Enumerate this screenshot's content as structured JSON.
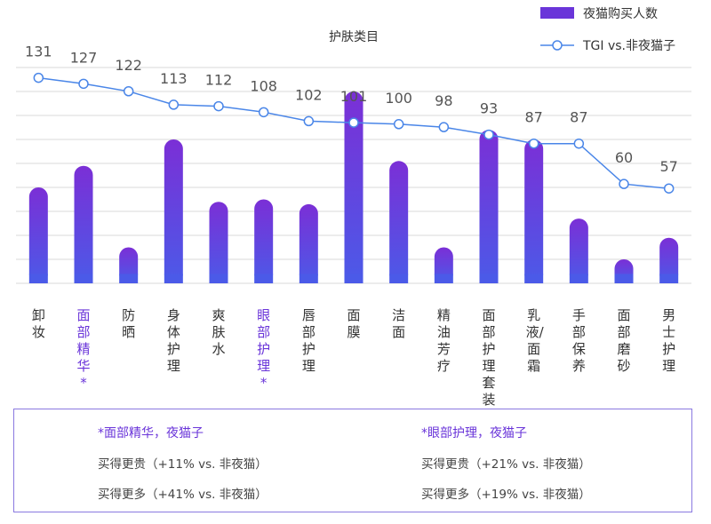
{
  "chart_data": {
    "type": "bar+line",
    "title": "护肤类目",
    "categories": [
      "卸妆",
      "面部精华*",
      "防晒",
      "身体护理",
      "爽肤水",
      "眼部护理*",
      "唇部护理",
      "面膜",
      "洁面",
      "精油芳疗",
      "面部护理套装",
      "乳液/面霜",
      "手部保养",
      "面部磨砂",
      "男士护理"
    ],
    "highlight_categories": [
      "面部精华*",
      "眼部护理*"
    ],
    "series": [
      {
        "name": "夜猫购买人数",
        "type": "bar",
        "color": "#7b2fd6",
        "values": [
          40,
          49,
          15,
          60,
          34,
          35,
          33,
          80,
          51,
          15,
          64,
          60,
          27,
          10,
          19
        ]
      },
      {
        "name": "TGI vs.非夜猫子",
        "type": "line",
        "color": "#4a86e8",
        "values": [
          131,
          127,
          122,
          113,
          112,
          108,
          102,
          101,
          100,
          98,
          93,
          87,
          87,
          60,
          57
        ]
      }
    ],
    "legend_position": "top-right",
    "grid": true
  },
  "notes": {
    "left": {
      "title": "*面部精华，夜猫子",
      "line1": "买得更贵（+11% vs. 非夜猫）",
      "line2": "买得更多（+41% vs. 非夜猫）"
    },
    "right": {
      "title": "*眼部护理，夜猫子",
      "line1": "买得更贵（+21% vs. 非夜猫）",
      "line2": "买得更多（+19% vs. 非夜猫）"
    }
  }
}
